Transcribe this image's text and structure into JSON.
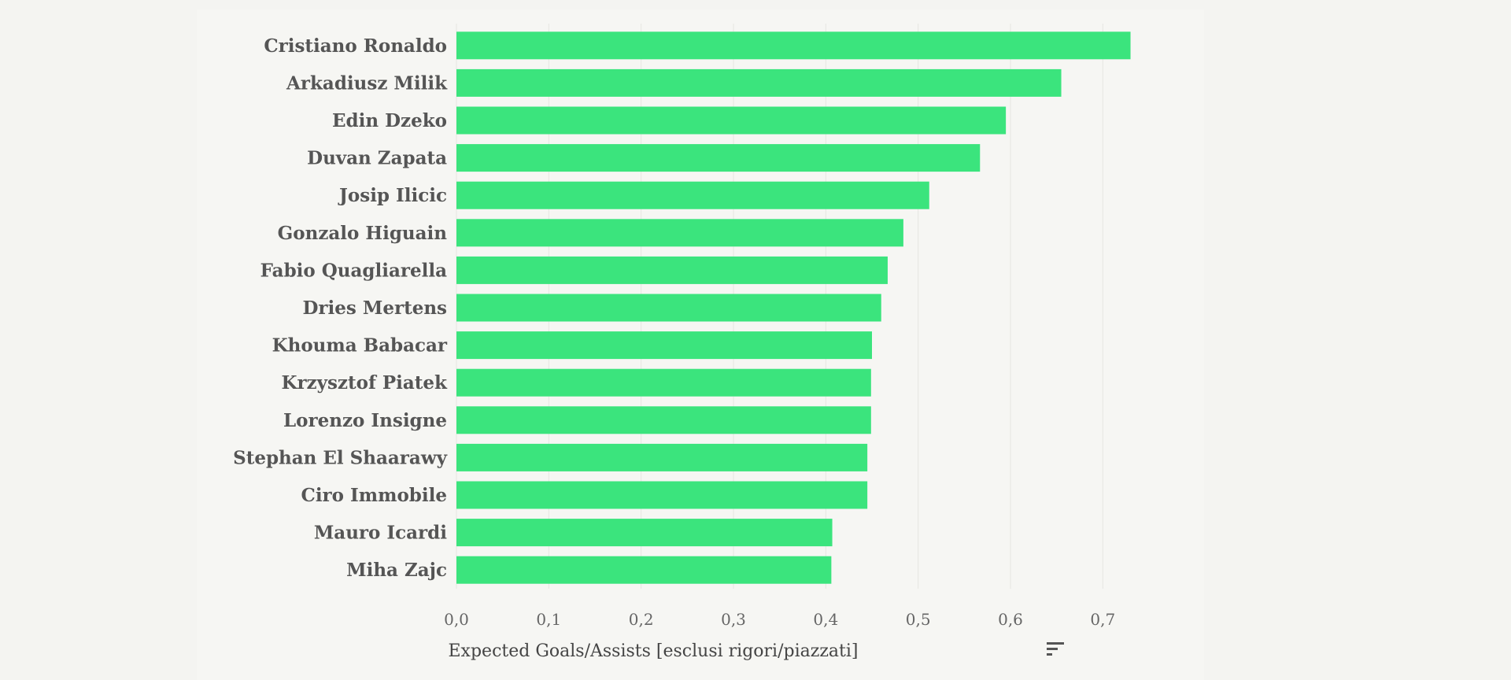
{
  "chart_data": {
    "type": "bar",
    "orientation": "horizontal",
    "title": "",
    "xlabel": "Expected Goals/Assists [esclusi rigori/piazzati]",
    "ylabel": "",
    "xlim": [
      0,
      0.75
    ],
    "grid": true,
    "bar_color": "#3be47d",
    "sort_icon": "sort-icon",
    "categories": [
      "Cristiano Ronaldo",
      "Arkadiusz Milik",
      "Edin Dzeko",
      "Duvan Zapata",
      "Josip Ilicic",
      "Gonzalo Higuain",
      "Fabio Quagliarella",
      "Dries Mertens",
      "Khouma Babacar",
      "Krzysztof Piatek",
      "Lorenzo Insigne",
      "Stephan El Shaarawy",
      "Ciro Immobile",
      "Mauro Icardi",
      "Miha Zajc"
    ],
    "values": [
      0.73,
      0.655,
      0.595,
      0.567,
      0.512,
      0.484,
      0.467,
      0.46,
      0.45,
      0.449,
      0.449,
      0.445,
      0.445,
      0.407,
      0.406
    ],
    "ticks": [
      0,
      0.1,
      0.2,
      0.3,
      0.4,
      0.5,
      0.6,
      0.7
    ],
    "tick_labels": [
      "0,0",
      "0,1",
      "0,2",
      "0,3",
      "0,4",
      "0,5",
      "0,6",
      "0,7"
    ]
  }
}
